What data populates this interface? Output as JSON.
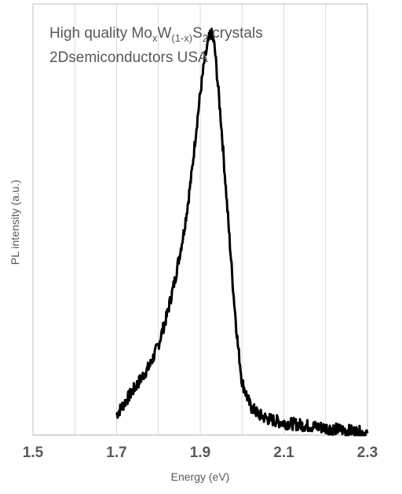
{
  "chart_data": {
    "type": "line",
    "xlabel": "Energy (eV)",
    "ylabel": "PL intensity (a.u.)",
    "xlim": [
      1.5,
      2.3
    ],
    "ylim": [
      0,
      1.05
    ],
    "x_ticks": [
      "1.5",
      "1.7",
      "1.9",
      "2.1",
      "2.3"
    ],
    "x_gridlines": [
      1.6,
      1.7,
      1.8,
      1.9,
      2.0,
      2.1,
      2.2
    ],
    "grid": true,
    "y_tick_labels_shown": false,
    "annotation": {
      "line1_prefix": "High quality Mo",
      "line1_sub_x": "x",
      "line1_W": "W",
      "line1_sub_1mx": "(1-x)",
      "line1_S": "S",
      "line1_sub_2": "2",
      "line1_suffix": " crystals",
      "line2": "2Dsemiconductors USA"
    },
    "series": [
      {
        "color": "#000000",
        "x": [
          1.7,
          1.72,
          1.74,
          1.76,
          1.78,
          1.8,
          1.82,
          1.84,
          1.86,
          1.87,
          1.88,
          1.89,
          1.9,
          1.91,
          1.92,
          1.925,
          1.93,
          1.935,
          1.94,
          1.95,
          1.96,
          1.97,
          1.98,
          1.99,
          2.0,
          2.02,
          2.04,
          2.06,
          2.08,
          2.1,
          2.14,
          2.18,
          2.22,
          2.26,
          2.3
        ],
        "y": [
          0.05,
          0.08,
          0.11,
          0.14,
          0.17,
          0.22,
          0.29,
          0.38,
          0.49,
          0.56,
          0.64,
          0.74,
          0.83,
          0.91,
          0.96,
          0.98,
          0.97,
          0.94,
          0.88,
          0.76,
          0.62,
          0.48,
          0.34,
          0.22,
          0.13,
          0.07,
          0.05,
          0.04,
          0.035,
          0.03,
          0.025,
          0.02,
          0.015,
          0.01,
          0.005
        ]
      }
    ]
  }
}
